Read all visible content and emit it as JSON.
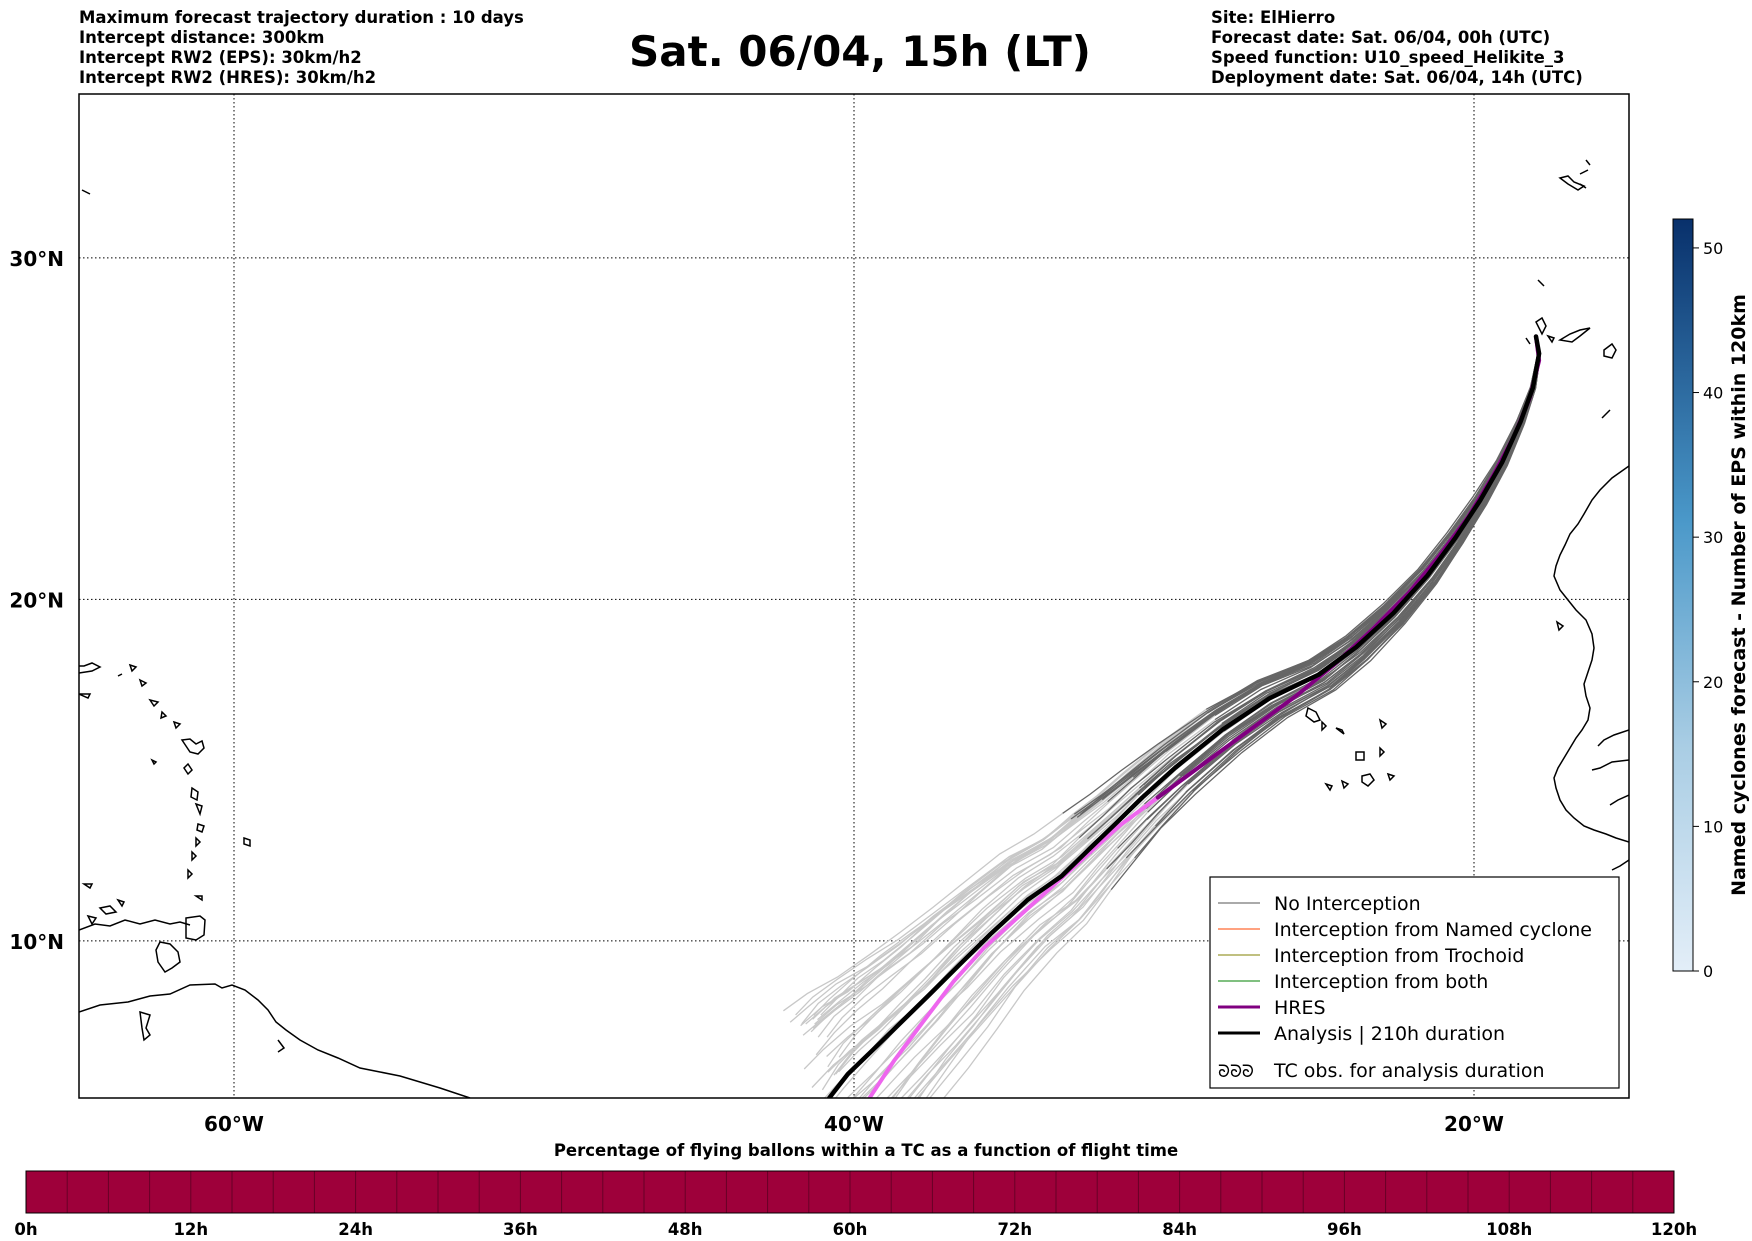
{
  "header": {
    "left_lines": [
      "Maximum forecast trajectory duration : 10 days",
      "Intercept distance: 300km",
      "Intercept RW2 (EPS):  30km/h2",
      "Intercept RW2 (HRES): 30km/h2"
    ],
    "title": "Sat. 06/04, 15h (LT)",
    "right_lines": [
      "Site: ElHierro",
      "Forecast date: Sat. 06/04, 00h (UTC)",
      "Speed function: U10_speed_Helikite_3",
      "Deployment date: Sat. 06/04, 14h (UTC)"
    ]
  },
  "map": {
    "lon_range": [
      -65,
      -15
    ],
    "lat_range": [
      5.4,
      34.8
    ],
    "lon_ticks": [
      {
        "value": -60,
        "label": "60°W"
      },
      {
        "value": -40,
        "label": "40°W"
      },
      {
        "value": -20,
        "label": "20°W"
      }
    ],
    "lat_ticks": [
      {
        "value": 10,
        "label": "10°N"
      },
      {
        "value": 20,
        "label": "20°N"
      },
      {
        "value": 30,
        "label": "30°N"
      }
    ],
    "site_position": {
      "lon": -18.0,
      "lat": 27.7
    },
    "analysis_track": [
      [
        -18.0,
        27.7
      ],
      [
        -17.9,
        27.2
      ],
      [
        -18.1,
        26.2
      ],
      [
        -18.5,
        25.2
      ],
      [
        -19.1,
        24.0
      ],
      [
        -19.8,
        22.9
      ],
      [
        -20.6,
        21.8
      ],
      [
        -21.5,
        20.7
      ],
      [
        -22.6,
        19.6
      ],
      [
        -23.8,
        18.6
      ],
      [
        -25.0,
        17.8
      ],
      [
        -26.6,
        17.1
      ],
      [
        -28.1,
        16.2
      ],
      [
        -29.6,
        15.1
      ],
      [
        -30.7,
        14.2
      ],
      [
        -31.6,
        13.4
      ],
      [
        -32.4,
        12.7
      ],
      [
        -33.3,
        11.9
      ],
      [
        -34.4,
        11.2
      ],
      [
        -35.6,
        10.2
      ],
      [
        -36.6,
        9.3
      ],
      [
        -37.6,
        8.4
      ],
      [
        -38.5,
        7.6
      ],
      [
        -39.4,
        6.8
      ],
      [
        -40.2,
        6.1
      ],
      [
        -40.8,
        5.4
      ]
    ],
    "hres_track": [
      [
        -18.0,
        27.7
      ],
      [
        -17.9,
        27.0
      ],
      [
        -18.2,
        25.9
      ],
      [
        -18.7,
        24.8
      ],
      [
        -19.4,
        23.6
      ],
      [
        -20.2,
        22.4
      ],
      [
        -21.1,
        21.3
      ],
      [
        -22.1,
        20.2
      ],
      [
        -23.3,
        19.1
      ],
      [
        -24.5,
        18.1
      ],
      [
        -25.7,
        17.2
      ],
      [
        -27.2,
        16.2
      ],
      [
        -28.7,
        15.2
      ],
      [
        -30.2,
        14.2
      ],
      [
        -31.4,
        13.4
      ],
      [
        -32.5,
        12.5
      ],
      [
        -33.6,
        11.6
      ],
      [
        -34.7,
        10.7
      ],
      [
        -35.8,
        9.8
      ],
      [
        -36.8,
        8.8
      ],
      [
        -37.8,
        7.6
      ],
      [
        -38.7,
        6.5
      ],
      [
        -39.5,
        5.4
      ]
    ]
  },
  "legend": {
    "items": [
      {
        "label": "No Interception",
        "color": "#555555",
        "width": 1
      },
      {
        "label": "Interception from Named cyclone",
        "color": "#ff4500",
        "width": 1
      },
      {
        "label": "Interception from Trochoid",
        "color": "#808000",
        "width": 1
      },
      {
        "label": "Interception from both",
        "color": "#008000",
        "width": 1
      },
      {
        "label": "HRES",
        "color": "#800080",
        "width": 3
      },
      {
        "label": "Analysis | 210h duration",
        "color": "#000000",
        "width": 3
      }
    ],
    "tc_symbol": "ᘐᘐᘐ",
    "tc_label": "TC obs. for analysis duration"
  },
  "right_colorbar": {
    "label": "Named cyclones forecast - Number of EPS within 120km",
    "range": [
      0,
      52
    ],
    "ticks": [
      "0",
      "10",
      "20",
      "30",
      "40",
      "50"
    ],
    "color_low": "#e3eef8",
    "color_high": "#08306b"
  },
  "bottom_colorbar": {
    "title": "Percentage of flying ballons within a TC as a function of flight time",
    "fill_color": "#9e003a",
    "ticks": [
      "0h",
      "12h",
      "24h",
      "36h",
      "48h",
      "60h",
      "72h",
      "84h",
      "96h",
      "108h",
      "120h"
    ]
  },
  "colors": {
    "eps_gray": "#666666",
    "eps_light": "#c8c8c8",
    "hres_early": "#ee66ee",
    "coast": "#000000"
  }
}
